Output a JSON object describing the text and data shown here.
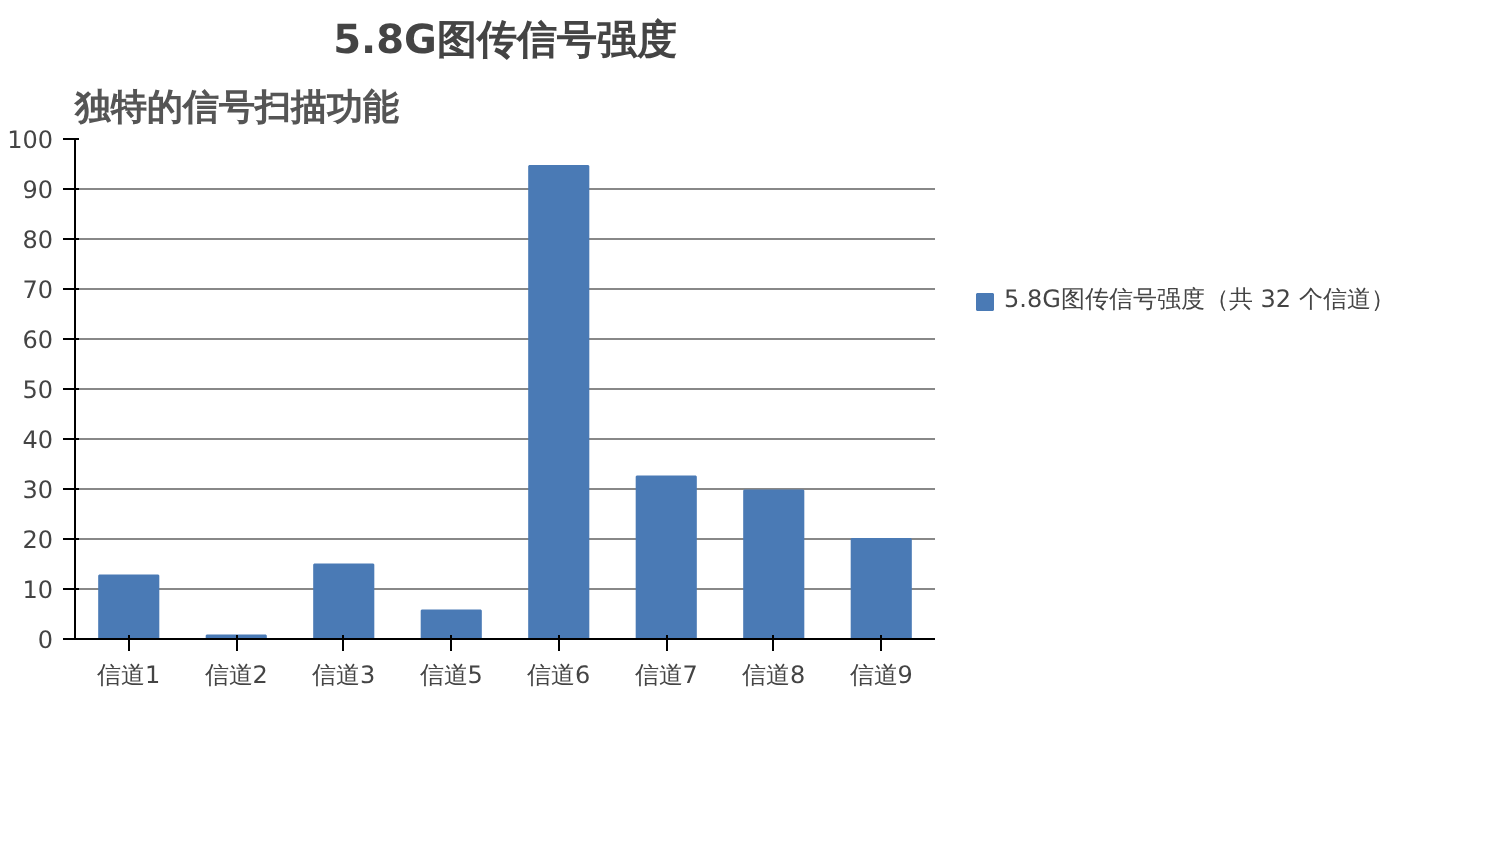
{
  "chart_data": {
    "type": "bar",
    "title": "5.8G图传信号强度",
    "annotations": [
      "独特的信号扫描功能"
    ],
    "categories": [
      "信道1",
      "信道2",
      "信道3",
      "信道5",
      "信道6",
      "信道7",
      "信道8",
      "信道9"
    ],
    "series": [
      {
        "name": "5.8G图传信号强度（共 32 个信道）",
        "color": "#4a7ab5",
        "values": [
          12.7,
          0.7,
          14.9,
          5.7,
          94.6,
          32.5,
          29.7,
          20
        ]
      }
    ],
    "ylim": [
      0,
      100
    ],
    "yticks": [
      0,
      10,
      20,
      30,
      40,
      50,
      60,
      70,
      80,
      90,
      100
    ],
    "grid": "y",
    "legend": "right"
  }
}
